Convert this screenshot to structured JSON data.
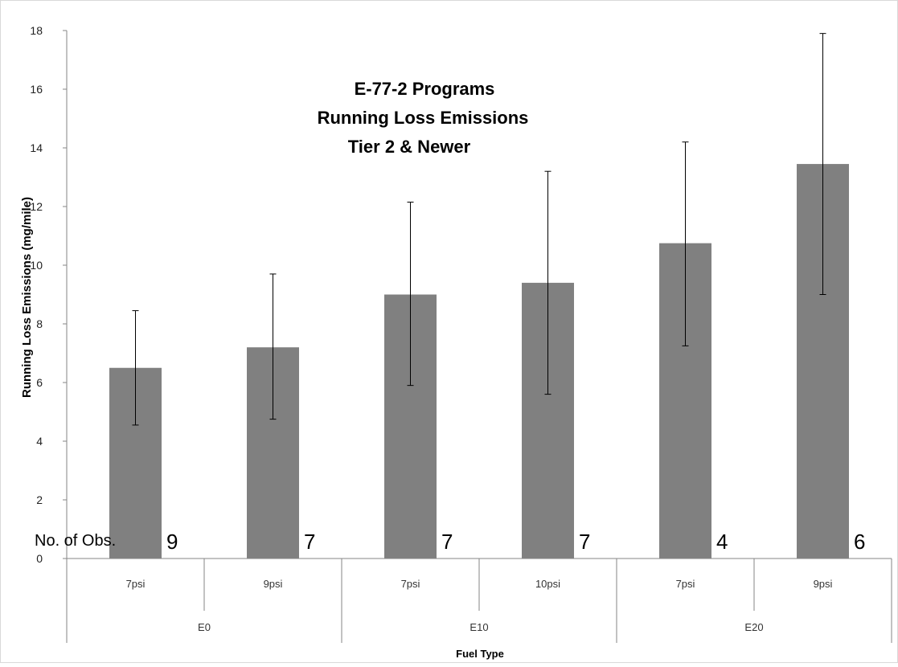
{
  "chart_data": {
    "type": "bar",
    "title_lines": [
      "E-77-2 Programs",
      "Running Loss Emissions",
      "Tier 2 &  Newer"
    ],
    "ylabel": "Running Loss Emissions (mg/mile)",
    "xlabel": "Fuel Type",
    "ylim": [
      0,
      18
    ],
    "yticks": [
      0,
      2,
      4,
      6,
      8,
      10,
      12,
      14,
      16,
      18
    ],
    "grid": false,
    "legend": "none",
    "groups": [
      {
        "label": "E0",
        "categories": [
          "7psi",
          "9psi"
        ]
      },
      {
        "label": "E10",
        "categories": [
          "7psi",
          "10psi"
        ]
      },
      {
        "label": "E20",
        "categories": [
          "7psi",
          "9psi"
        ]
      }
    ],
    "values": [
      6.5,
      7.2,
      9.0,
      9.4,
      10.75,
      13.45
    ],
    "error_low": [
      4.55,
      4.75,
      5.9,
      5.6,
      7.25,
      9.0
    ],
    "error_high": [
      8.45,
      9.7,
      12.15,
      13.2,
      14.2,
      17.9
    ],
    "obs_label": "No. of Obs.",
    "obs_counts": [
      "9",
      "7",
      "7",
      "7",
      "4",
      "6"
    ],
    "bar_color": "#808080"
  }
}
